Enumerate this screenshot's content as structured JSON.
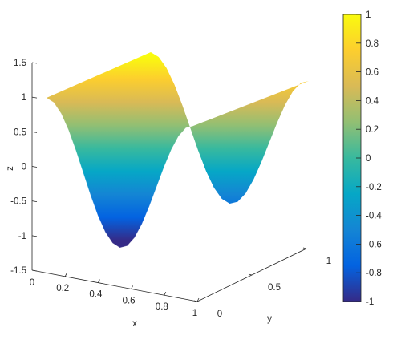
{
  "chart_data": {
    "type": "surface",
    "function": "z = cos(2*pi*x)",
    "x_range": [
      0,
      1
    ],
    "y_range": [
      0,
      1
    ],
    "z_range": [
      -1.5,
      1.5
    ],
    "xlabel": "x",
    "ylabel": "y",
    "zlabel": "z",
    "x_ticks": [
      "0.2",
      "0.4",
      "0.6",
      "0.8",
      "1"
    ],
    "y_ticks": [
      "0",
      "0.5",
      "1"
    ],
    "z_ticks": [
      "-1.5",
      "-1",
      "-0.5",
      "0",
      "0.5",
      "1",
      "1.5"
    ],
    "z_zero_label": "0",
    "profile": {
      "x": [
        0,
        0.05,
        0.1,
        0.15,
        0.2,
        0.25,
        0.3,
        0.35,
        0.4,
        0.45,
        0.5,
        0.55,
        0.6,
        0.65,
        0.7,
        0.75,
        0.8,
        0.85,
        0.9,
        0.95,
        1
      ],
      "z": [
        1,
        0.951,
        0.809,
        0.588,
        0.309,
        0,
        -0.309,
        -0.588,
        -0.809,
        -0.951,
        -1,
        -0.951,
        -0.809,
        -0.588,
        -0.309,
        0,
        0.309,
        0.588,
        0.809,
        0.951,
        1
      ]
    },
    "colormap": "parula",
    "colorbar": {
      "limits": [
        -1,
        1
      ],
      "ticks": [
        "1",
        "0.8",
        "0.6",
        "0.4",
        "0.2",
        "0",
        "-0.2",
        "-0.4",
        "-0.6",
        "-0.8",
        "-1"
      ],
      "colors": [
        "#352a87",
        "#0363e1",
        "#1485d4",
        "#06a7c6",
        "#38b99e",
        "#92bf73",
        "#d9ba56",
        "#fcce2e",
        "#f9fb0e"
      ]
    }
  }
}
